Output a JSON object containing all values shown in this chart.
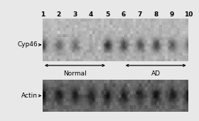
{
  "bg_color": "#e8e8e8",
  "num_lanes": 10,
  "lane_numbers": [
    "1",
    "2",
    "3",
    "4",
    "5",
    "6",
    "7",
    "8",
    "9",
    "10"
  ],
  "cyp46_bands": [
    0.88,
    0.6,
    0.55,
    0.18,
    0.92,
    0.82,
    0.72,
    0.8,
    0.65,
    0.45
  ],
  "actin_bands": [
    0.82,
    0.78,
    0.8,
    0.76,
    0.82,
    0.82,
    0.76,
    0.88,
    0.82,
    0.88
  ],
  "label_cyp46": "Cyp46",
  "label_actin": "Actin",
  "label_normal": "Normal",
  "label_ad": "AD",
  "blot1_bg_val": 0.72,
  "blot2_bg_val": 0.42,
  "band_cyp46_darkness": 0.15,
  "band_actin_darkness": 0.12,
  "label_fontsize": 6.0,
  "lane_num_fontsize": 6.5
}
